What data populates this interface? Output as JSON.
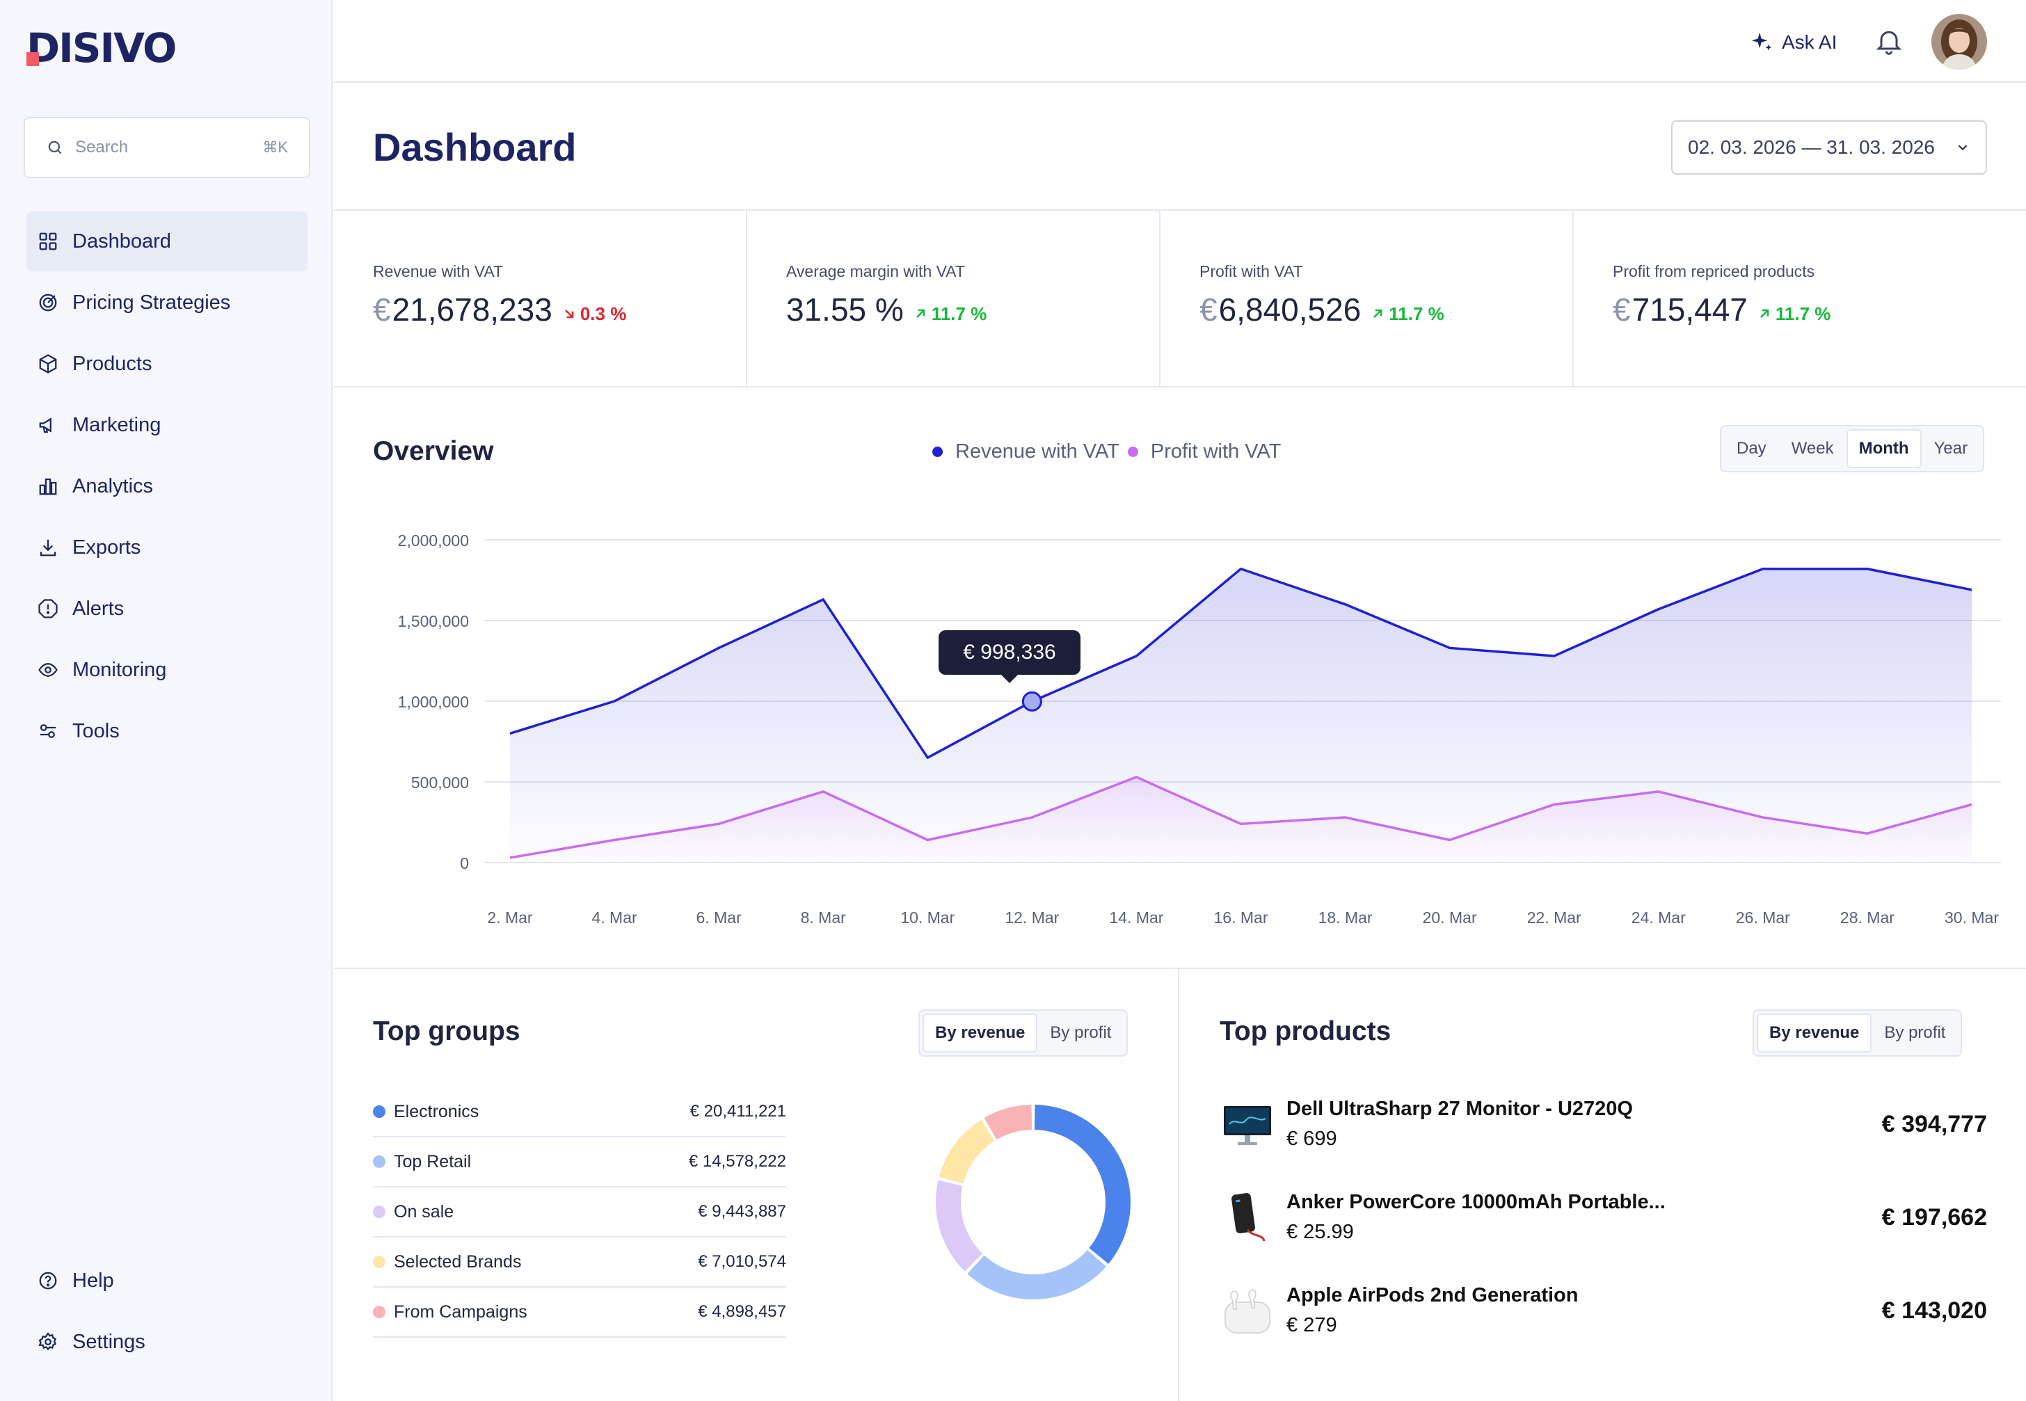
{
  "brand": {
    "name": "Disivo"
  },
  "search": {
    "placeholder": "Search",
    "shortcut": "⌘K"
  },
  "sidebar": {
    "items": [
      {
        "label": "Dashboard",
        "icon": "grid-icon",
        "active": true
      },
      {
        "label": "Pricing Strategies",
        "icon": "target-icon"
      },
      {
        "label": "Products",
        "icon": "box-icon"
      },
      {
        "label": "Marketing",
        "icon": "megaphone-icon"
      },
      {
        "label": "Analytics",
        "icon": "bar-chart-icon"
      },
      {
        "label": "Exports",
        "icon": "download-icon"
      },
      {
        "label": "Alerts",
        "icon": "alert-octagon-icon"
      },
      {
        "label": "Monitoring",
        "icon": "eye-icon"
      },
      {
        "label": "Tools",
        "icon": "tools-icon"
      }
    ],
    "bottom": [
      {
        "label": "Help",
        "icon": "help-circle-icon"
      },
      {
        "label": "Settings",
        "icon": "gear-icon"
      }
    ]
  },
  "topbar": {
    "ask_ai": "Ask AI"
  },
  "header": {
    "title": "Dashboard",
    "date_range": "02. 03. 2026 — 31. 03. 2026"
  },
  "kpis": [
    {
      "label": "Revenue with VAT",
      "currency": "€",
      "value": "21,678,233",
      "change": "0.3 %",
      "direction": "down"
    },
    {
      "label": "Average margin with VAT",
      "currency": "",
      "value": "31.55 %",
      "change": "11.7 %",
      "direction": "up"
    },
    {
      "label": "Profit with VAT",
      "currency": "€",
      "value": "6,840,526",
      "change": "11.7 %",
      "direction": "up"
    },
    {
      "label": "Profit from repriced products",
      "currency": "€",
      "value": "715,447",
      "change": "11.7 %",
      "direction": "up"
    }
  ],
  "overview": {
    "title": "Overview",
    "periods": [
      "Day",
      "Week",
      "Month",
      "Year"
    ],
    "active_period": "Month",
    "tooltip": "€ 998,336"
  },
  "chart_data": {
    "type": "area",
    "categories": [
      "2. Mar",
      "4. Mar",
      "6. Mar",
      "8. Mar",
      "10. Mar",
      "12. Mar",
      "14. Mar",
      "16. Mar",
      "18. Mar",
      "20. Mar",
      "22. Mar",
      "24. Mar",
      "26. Mar",
      "28. Mar",
      "30. Mar"
    ],
    "series": [
      {
        "name": "Revenue with VAT",
        "color": "#1f1fd6",
        "values": [
          800000,
          1000000,
          1330000,
          1630000,
          650000,
          998336,
          1280000,
          1820000,
          1600000,
          1330000,
          1280000,
          1570000,
          1820000,
          1820000,
          1690000
        ]
      },
      {
        "name": "Profit with VAT",
        "color": "#c86cf0",
        "values": [
          30000,
          140000,
          240000,
          440000,
          140000,
          280000,
          530000,
          240000,
          280000,
          140000,
          360000,
          440000,
          280000,
          180000,
          360000
        ]
      }
    ],
    "ylim": [
      0,
      2000000
    ],
    "yticks": [
      "2,000,000",
      "1,500,000",
      "1,000,000",
      "500,000",
      "0"
    ],
    "tooltip_index": 5,
    "grid": true,
    "legend": "top-center"
  },
  "top_groups": {
    "title": "Top groups",
    "tabs": [
      "By revenue",
      "By profit"
    ],
    "active_tab": "By revenue",
    "items": [
      {
        "name": "Electronics",
        "value": "€ 20,411,221",
        "color": "#4b82ec",
        "amount": 20411221
      },
      {
        "name": "Top Retail",
        "value": "€ 14,578,222",
        "color": "#a4c3f9",
        "amount": 14578222
      },
      {
        "name": "On sale",
        "value": "€ 9,443,887",
        "color": "#dcc9f8",
        "amount": 9443887
      },
      {
        "name": "Selected Brands",
        "value": "€ 7,010,574",
        "color": "#fde6a6",
        "amount": 7010574
      },
      {
        "name": "From Campaigns",
        "value": "€ 4,898,457",
        "color": "#f9b3b6",
        "amount": 4898457
      }
    ]
  },
  "top_products": {
    "title": "Top products",
    "tabs": [
      "By revenue",
      "By profit"
    ],
    "active_tab": "By revenue",
    "items": [
      {
        "name": "Dell UltraSharp 27 Monitor - U2720Q",
        "price": "€ 699",
        "revenue": "€ 394,777",
        "icon": "monitor-icon"
      },
      {
        "name": "Anker PowerCore 10000mAh Portable...",
        "price": "€ 25.99",
        "revenue": "€ 197,662",
        "icon": "power-bank-icon"
      },
      {
        "name": "Apple AirPods 2nd Generation",
        "price": "€ 279",
        "revenue": "€ 143,020",
        "icon": "earbuds-icon"
      }
    ]
  }
}
